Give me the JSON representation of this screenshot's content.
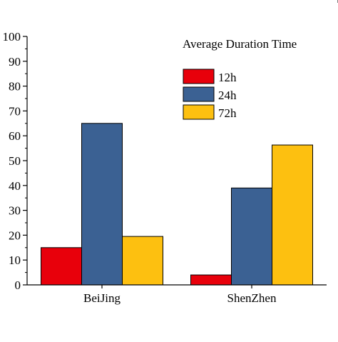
{
  "chart_data": {
    "type": "bar",
    "categories": [
      "BeiJing",
      "ShenZhen"
    ],
    "series": [
      {
        "name": "12h",
        "values": [
          15,
          4
        ],
        "color": "#e8000b"
      },
      {
        "name": "24h",
        "values": [
          65,
          39
        ],
        "color": "#3b6193"
      },
      {
        "name": "72h",
        "values": [
          19.5,
          56.3
        ],
        "color": "#fdc010"
      }
    ],
    "title": "",
    "xlabel": "",
    "ylabel": "",
    "ylim": [
      0,
      100
    ],
    "yticks": [
      "0",
      "10",
      "20",
      "30",
      "40",
      "50",
      "60",
      "70",
      "80",
      "90",
      "100"
    ],
    "legend": {
      "title": "Average Duration Time",
      "placement": "top-right"
    },
    "grid": false
  }
}
